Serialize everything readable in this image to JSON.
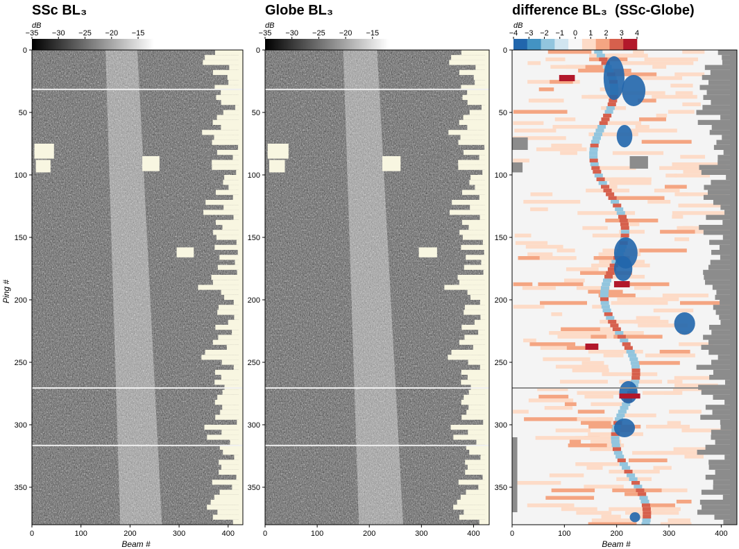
{
  "chart_data": [
    {
      "type": "heatmap",
      "title": "SSc BL₃",
      "xlabel": "Beam #",
      "ylabel": "Ping #",
      "xlim": [
        0,
        430
      ],
      "ylim": [
        0,
        380
      ],
      "x_ticks": [
        0,
        100,
        200,
        300,
        400
      ],
      "y_ticks": [
        0,
        50,
        100,
        150,
        200,
        250,
        300,
        350
      ],
      "colorbar": {
        "unit": "dB",
        "range": [
          -35,
          -12
        ],
        "ticks": [
          -35,
          -30,
          -25,
          -20,
          -15
        ],
        "colormap": "gray"
      },
      "colors": {
        "nodata": "#f8f6e1",
        "low": "#000000",
        "high": "#ffffff"
      }
    },
    {
      "type": "heatmap",
      "title": "Globe BL₃",
      "xlabel": "",
      "ylabel": "",
      "xlim": [
        0,
        430
      ],
      "ylim": [
        0,
        380
      ],
      "x_ticks": [
        0,
        100,
        200,
        300,
        400
      ],
      "y_ticks": [
        0,
        50,
        100,
        150,
        200,
        250,
        300,
        350
      ],
      "colorbar": {
        "unit": "dB",
        "range": [
          -35,
          -12
        ],
        "ticks": [
          -35,
          -30,
          -25,
          -20,
          -15
        ],
        "colormap": "gray"
      },
      "colors": {
        "nodata": "#f8f6e1",
        "low": "#000000",
        "high": "#ffffff"
      }
    },
    {
      "type": "heatmap",
      "title": "difference BL₃  (SSc-Globe)",
      "xlabel": "Beam #",
      "ylabel": "",
      "xlim": [
        0,
        430
      ],
      "ylim": [
        0,
        380
      ],
      "x_ticks": [
        0,
        100,
        200,
        300,
        400
      ],
      "y_ticks": [
        0,
        50,
        100,
        150,
        200,
        250,
        300,
        350
      ],
      "colorbar": {
        "unit": "dB",
        "range": [
          -4,
          4
        ],
        "ticks": [
          -4,
          -3,
          -2,
          -1,
          0,
          1,
          2,
          3,
          4
        ],
        "colormap": "diverging-blue-red",
        "steps": [
          "#2166ac",
          "#4393c3",
          "#92c5de",
          "#d1e5f0",
          "#f7f7f7",
          "#fddbc7",
          "#f4a582",
          "#d6604d",
          "#b2182b"
        ]
      },
      "colors": {
        "nodata": "#8c8c8c"
      }
    }
  ]
}
